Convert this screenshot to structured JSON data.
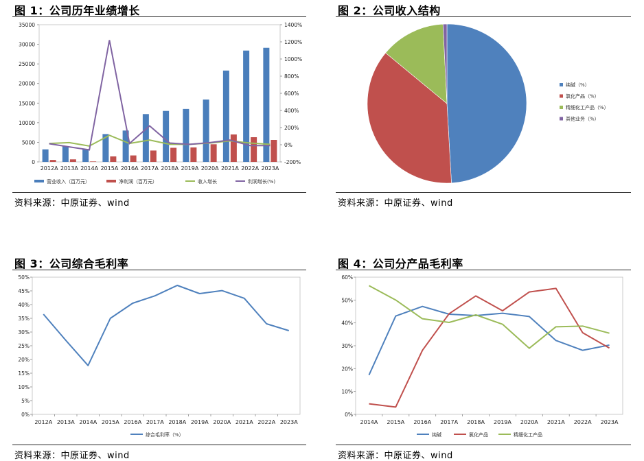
{
  "charts": [
    {
      "title": "图 1：公司历年业绩增长",
      "source": "资料来源：中原证券、wind",
      "chart_data": {
        "type": "bar",
        "categories": [
          "2012A",
          "2013A",
          "2014A",
          "2015A",
          "2016A",
          "2017A",
          "2018A",
          "2019A",
          "2020A",
          "2021A",
          "2022A",
          "2023A"
        ],
        "y_left_ticks": [
          "0",
          "5000",
          "10000",
          "15000",
          "20000",
          "25000",
          "30000",
          "35000"
        ],
        "y_right_ticks": [
          "-200%",
          "0%",
          "200%",
          "400%",
          "600%",
          "800%",
          "1000%",
          "1200%",
          "1400%"
        ],
        "ylim_left": [
          0,
          35000
        ],
        "ylim_right": [
          -200,
          1400
        ],
        "bar_series": [
          {
            "name": "营业收入（百万元）",
            "color": "#4a7ebb",
            "values": [
              3200,
              4000,
              3300,
              7100,
              8000,
              12200,
              13000,
              13500,
              15900,
              23300,
              28400,
              29100
            ]
          },
          {
            "name": "净利润（百万元）",
            "color": "#c0504d",
            "values": [
              500,
              650,
              120,
              1400,
              1650,
              2900,
              3600,
              3700,
              4500,
              7000,
              6300,
              5600
            ]
          }
        ],
        "line_series": [
          {
            "name": "收入增长",
            "color": "#9bbb59",
            "values": [
              15,
              25,
              -15,
              110,
              15,
              55,
              5,
              5,
              20,
              45,
              20,
              5
            ]
          },
          {
            "name": "利润增长(%)",
            "color": "#8064a2",
            "values": [
              12,
              -25,
              -60,
              1220,
              15,
              220,
              20,
              5,
              25,
              55,
              -10,
              -10
            ]
          }
        ],
        "legend_position": "bottom"
      }
    },
    {
      "title": "图 2：公司收入结构",
      "source": "资料来源：中原证券、wind",
      "chart_data": {
        "type": "pie",
        "slices": [
          {
            "name": "纯碱（%）",
            "value": 49.1,
            "color": "#4f81bd"
          },
          {
            "name": "氯化产品（%）",
            "value": 36.9,
            "color": "#c0504d"
          },
          {
            "name": "精细化工产品（%）",
            "value": 13.2,
            "color": "#9bbb59"
          },
          {
            "name": "其他业务（%）",
            "value": 0.8,
            "color": "#8064a2"
          }
        ],
        "legend_position": "right"
      }
    },
    {
      "title": "图 3：公司综合毛利率",
      "source": "资料来源：中原证券、wind",
      "chart_data": {
        "type": "line",
        "categories": [
          "2012A",
          "2013A",
          "2014A",
          "2015A",
          "2016A",
          "2017A",
          "2018A",
          "2019A",
          "2020A",
          "2021A",
          "2022A",
          "2023A"
        ],
        "y_ticks": [
          "0%",
          "5%",
          "10%",
          "15%",
          "20%",
          "25%",
          "30%",
          "35%",
          "40%",
          "45%",
          "50%"
        ],
        "ylim": [
          0,
          50
        ],
        "series": [
          {
            "name": "综合毛利率（%）",
            "color": "#4f81bd",
            "values": [
              36.5,
              27,
              17.8,
              35,
              40.5,
              43.2,
              47,
              44,
              45.1,
              42.3,
              33,
              30.5
            ]
          }
        ],
        "legend_position": "bottom"
      }
    },
    {
      "title": "图 4：公司分产品毛利率",
      "source": "资料来源：中原证券、wind",
      "chart_data": {
        "type": "line",
        "categories": [
          "2014A",
          "2015A",
          "2016A",
          "2017A",
          "2018A",
          "2019A",
          "2020A",
          "2021A",
          "2022A",
          "2023A"
        ],
        "y_ticks": [
          "0%",
          "10%",
          "20%",
          "30%",
          "40%",
          "50%",
          "60%"
        ],
        "ylim": [
          0,
          60
        ],
        "series": [
          {
            "name": "纯碱",
            "color": "#4f81bd",
            "values": [
              17.2,
              43,
              47.2,
              43.8,
              43.2,
              44.2,
              42.8,
              32.3,
              28,
              30.3
            ]
          },
          {
            "name": "氯化产品",
            "color": "#c0504d",
            "values": [
              4.6,
              3.2,
              28,
              44,
              51.8,
              45.3,
              53.5,
              55.1,
              35.7,
              29
            ]
          },
          {
            "name": "精细化工产品",
            "color": "#9bbb59",
            "values": [
              56.3,
              50,
              41.8,
              40.2,
              43.5,
              39.4,
              28.9,
              38.3,
              38.6,
              35.5
            ]
          }
        ],
        "legend_position": "bottom"
      }
    }
  ]
}
